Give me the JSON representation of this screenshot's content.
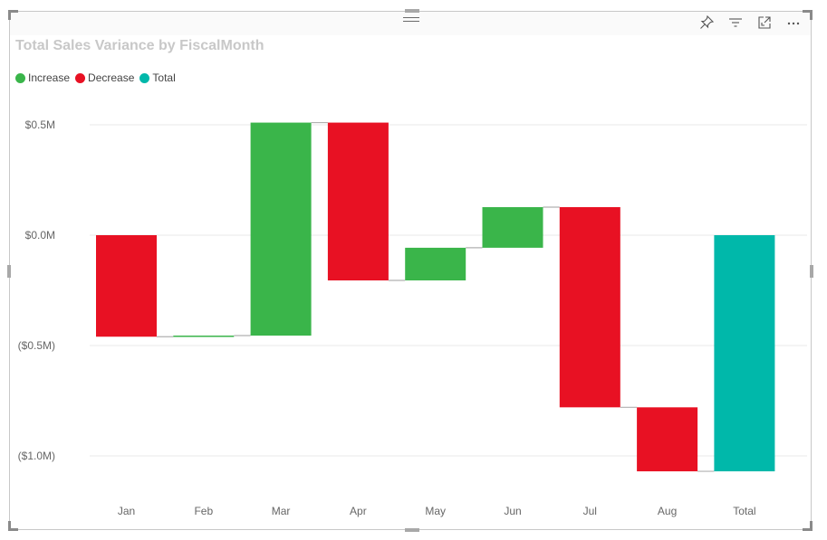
{
  "visual": {
    "title": "Total Sales Variance by FiscalMonth",
    "toolbar": {
      "pin": "pin-icon",
      "filter": "filter-icon",
      "focus": "focus-mode-icon",
      "more": "more-options-icon",
      "more_label": "…"
    }
  },
  "legend": [
    {
      "label": "Increase",
      "color": "#3ab54a"
    },
    {
      "label": "Decrease",
      "color": "#e81123"
    },
    {
      "label": "Total",
      "color": "#00b8aa"
    }
  ],
  "colors": {
    "increase": "#3ab54a",
    "decrease": "#e81123",
    "total": "#00b8aa",
    "gridline": "#e8e8e8",
    "connector": "#b0b0b0"
  },
  "chart_data": {
    "type": "waterfall",
    "title": "Total Sales Variance by FiscalMonth",
    "xlabel": "",
    "ylabel": "",
    "categories": [
      "Jan",
      "Feb",
      "Mar",
      "Apr",
      "May",
      "Jun",
      "Jul",
      "Aug",
      "Total"
    ],
    "values": [
      -0.46,
      0.005,
      0.965,
      -0.715,
      0.148,
      0.184,
      -0.907,
      -0.29,
      -1.07
    ],
    "value_unit": "$M",
    "kinds": [
      "decrease",
      "increase",
      "increase",
      "decrease",
      "increase",
      "increase",
      "decrease",
      "decrease",
      "total"
    ],
    "running_totals": [
      -0.46,
      -0.455,
      0.51,
      -0.205,
      -0.057,
      0.127,
      -0.78,
      -1.07,
      -1.07
    ],
    "yticks": [
      {
        "value": 0.5,
        "label": "$0.5M"
      },
      {
        "value": 0.0,
        "label": "$0.0M"
      },
      {
        "value": -0.5,
        "label": "($0.5M)"
      },
      {
        "value": -1.0,
        "label": "($1.0M)"
      }
    ],
    "ylim": [
      -1.15,
      0.55
    ],
    "legend": [
      "Increase",
      "Decrease",
      "Total"
    ],
    "legend_position": "top-left",
    "grid": true
  }
}
